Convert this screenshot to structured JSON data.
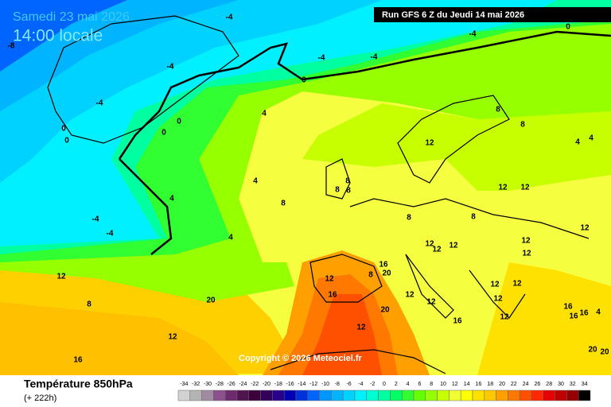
{
  "header": {
    "date": "Samedi 23 mai 2026",
    "time": "14:00 locale",
    "run": "Run GFS 6 Z du Jeudi 14 mai 2026"
  },
  "copyright": "Copyright © 2026 Meteociel.fr",
  "footer": {
    "title": "Température 850hPa",
    "offset": "(+ 222h)"
  },
  "scale": {
    "values": [
      -34,
      -32,
      -30,
      -28,
      -26,
      -24,
      -22,
      -20,
      -18,
      -16,
      -14,
      -12,
      -10,
      -8,
      -6,
      -4,
      -2,
      0,
      2,
      4,
      6,
      8,
      10,
      12,
      14,
      16,
      18,
      20,
      22,
      24,
      26,
      28,
      30,
      32,
      34
    ],
    "colors": [
      "#d2d2d2",
      "#b4b4b4",
      "#a08ca0",
      "#8c508c",
      "#6e2a6e",
      "#501450",
      "#3c003c",
      "#32005a",
      "#28008c",
      "#0000b4",
      "#0032dc",
      "#0064ff",
      "#0096ff",
      "#00b4ff",
      "#00d2ff",
      "#00f0ff",
      "#00ffd2",
      "#00ffa0",
      "#00ff64",
      "#32ff32",
      "#64ff00",
      "#96ff00",
      "#c8ff00",
      "#f0ff32",
      "#ffff00",
      "#ffe100",
      "#ffc800",
      "#ffa000",
      "#ff7800",
      "#ff5000",
      "#ff2800",
      "#e60000",
      "#be0000",
      "#960000",
      "#000000"
    ]
  },
  "contour_labels": [
    -8,
    -4,
    -4,
    -4,
    -4,
    0,
    0,
    -4,
    -4,
    0,
    0,
    0,
    0,
    4,
    8,
    8,
    12,
    4,
    4,
    8,
    8,
    8,
    4,
    4,
    8,
    -4,
    -4,
    4,
    12,
    12,
    8,
    8,
    12,
    12,
    12,
    12,
    12,
    12,
    16,
    8,
    20,
    12,
    12,
    12,
    12,
    12,
    12,
    12,
    16,
    16,
    16,
    16,
    4,
    12,
    8,
    20,
    16,
    20,
    12,
    12,
    16,
    20,
    20
  ]
}
